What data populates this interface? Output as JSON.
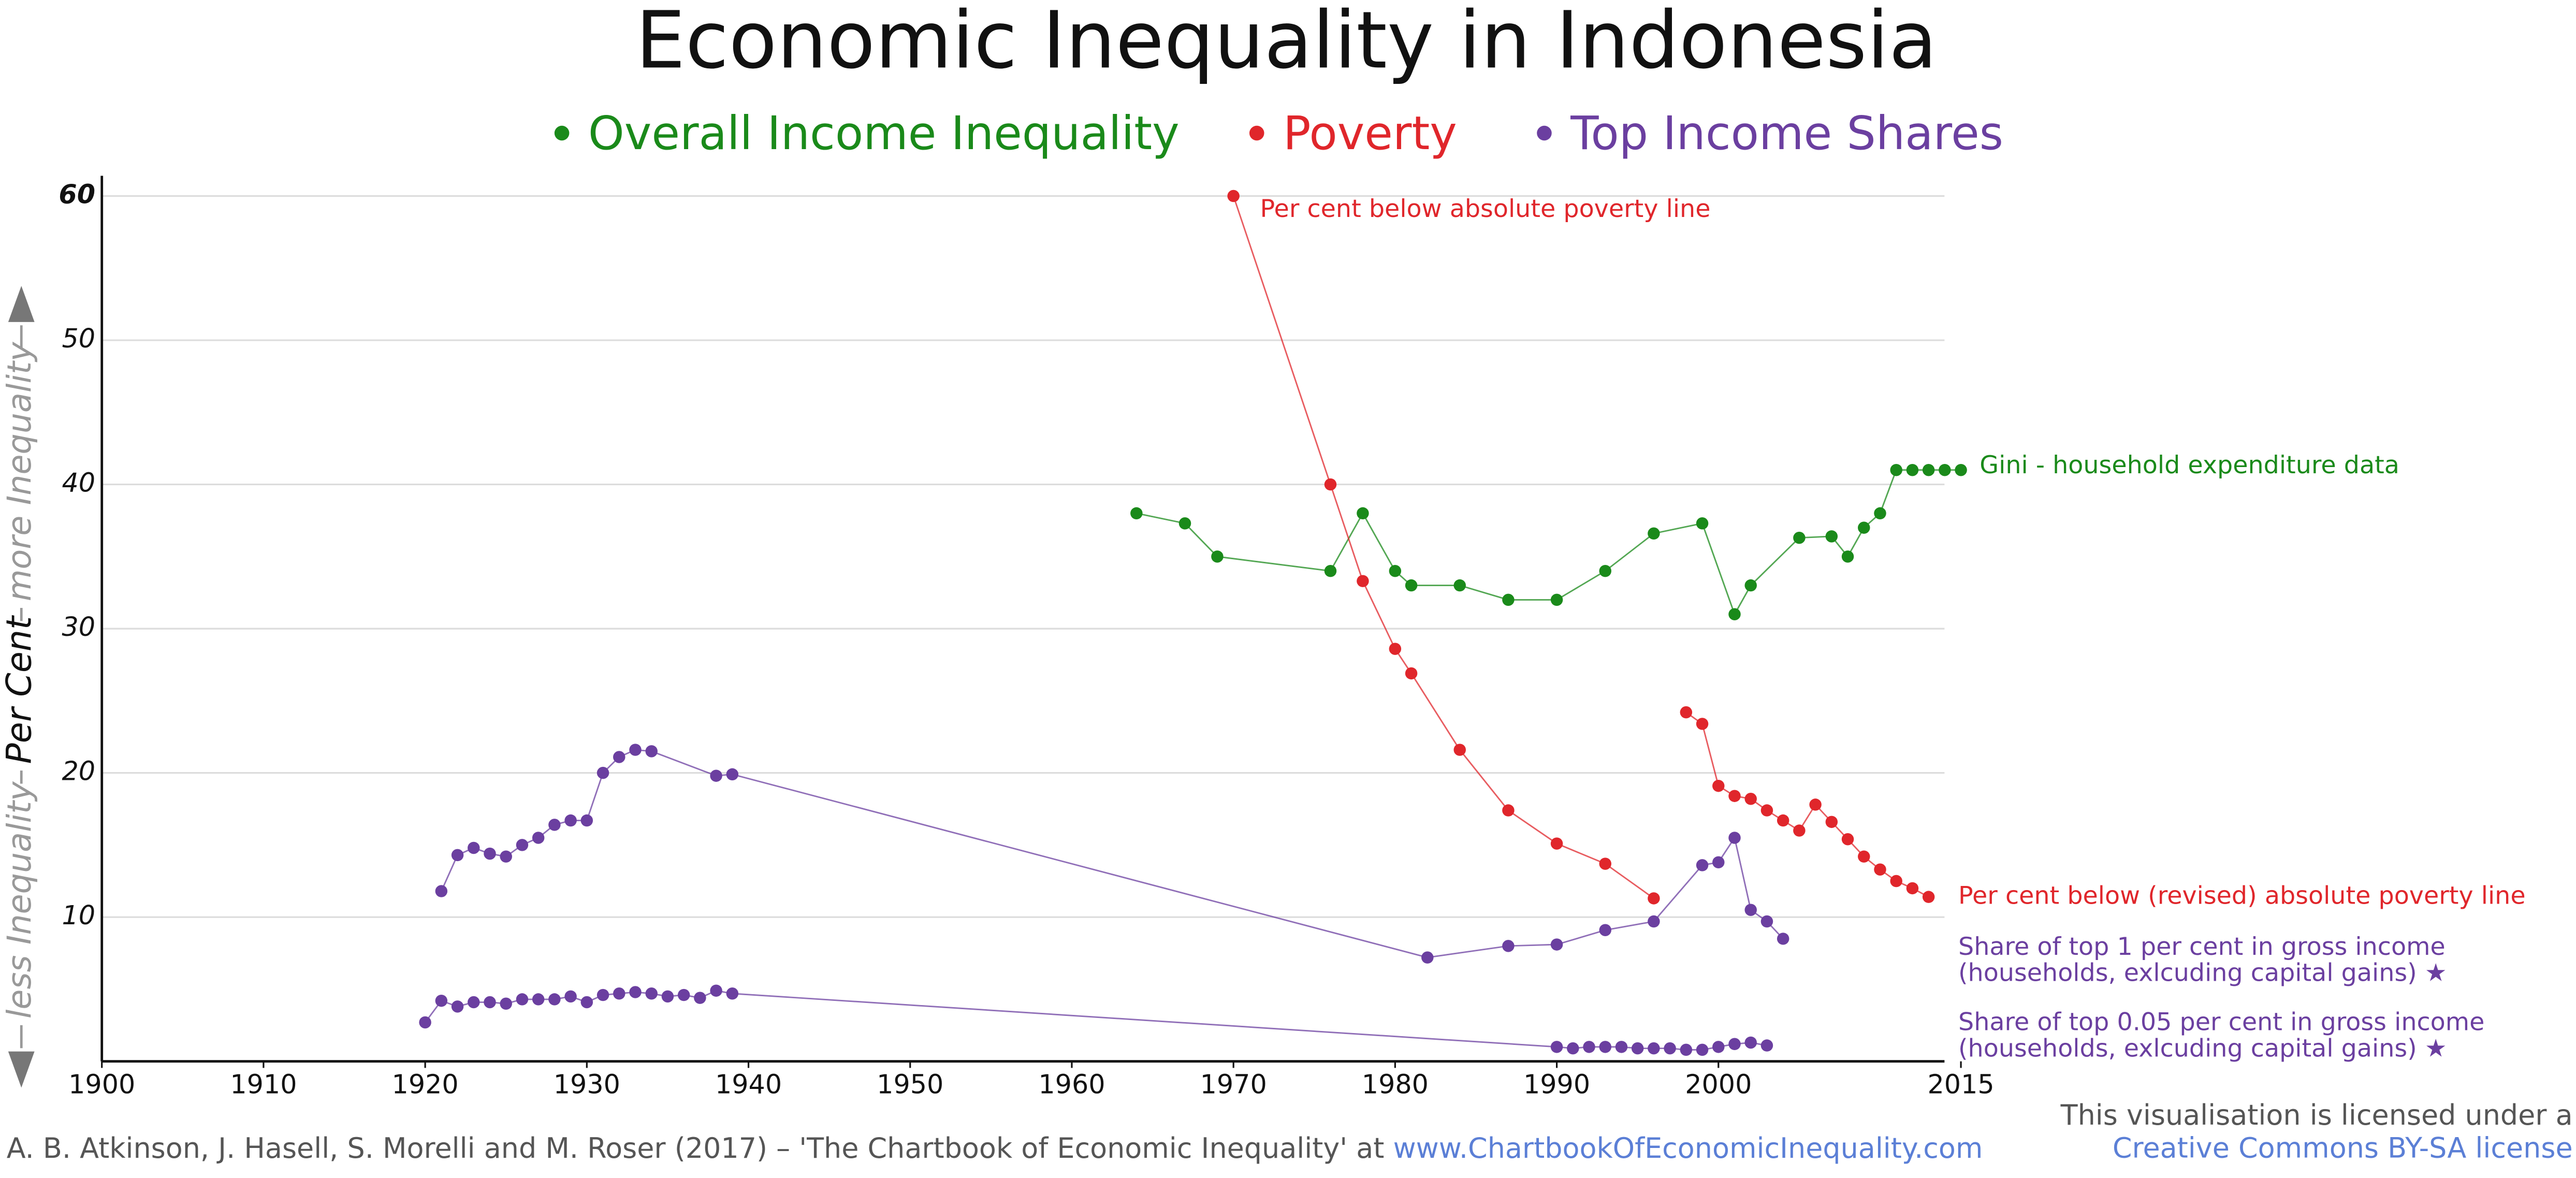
{
  "chart_data": {
    "type": "line",
    "title": "Economic Inequality in Indonesia",
    "legend": [
      {
        "name": "Overall Income Inequality",
        "color": "#1a8a1a"
      },
      {
        "name": "Poverty",
        "color": "#e0262b"
      },
      {
        "name": "Top Income Shares",
        "color": "#6b3fa0"
      }
    ],
    "y_label": {
      "low": "less Inequality",
      "main": "Per Cent",
      "high": "more Inequality"
    },
    "xlim": [
      1900,
      2015
    ],
    "xticks": [
      1900,
      1910,
      1920,
      1930,
      1940,
      1950,
      1960,
      1970,
      1980,
      1990,
      2000,
      2015
    ],
    "ylim": [
      0,
      61.4
    ],
    "yticks": [
      10,
      20,
      30,
      40,
      50,
      60
    ],
    "grid": true,
    "series": [
      {
        "label": "Gini - household expenditure data",
        "color": "#1a8a1a",
        "x": [
          1964,
          1967,
          1969,
          1976,
          1978,
          1980,
          1981,
          1984,
          1987,
          1990,
          1993,
          1996,
          1999,
          2001,
          2002,
          2005,
          2007,
          2008,
          2009,
          2010,
          2011,
          2012,
          2013,
          2014,
          2015
        ],
        "values": [
          38,
          37.3,
          35,
          34,
          38,
          34,
          33,
          33,
          32,
          32,
          34,
          36.6,
          37.3,
          31,
          33,
          36.3,
          36.4,
          35,
          37,
          38,
          41,
          41,
          41,
          41,
          41
        ]
      },
      {
        "label": "Per cent below absolute poverty line",
        "color": "#e0262b",
        "x": [
          1970,
          1976,
          1978,
          1980,
          1981,
          1984,
          1987,
          1990,
          1993,
          1996
        ],
        "values": [
          60,
          40,
          33.3,
          28.6,
          26.9,
          21.6,
          17.4,
          15.1,
          13.7,
          11.3
        ]
      },
      {
        "label": "Per cent below (revised) absolute poverty line",
        "color": "#e0262b",
        "x": [
          1998,
          1999,
          2000,
          2001,
          2002,
          2003,
          2004,
          2005,
          2006,
          2007,
          2008,
          2009,
          2010,
          2011,
          2012,
          2013
        ],
        "values": [
          24.2,
          23.4,
          19.1,
          18.4,
          18.2,
          17.4,
          16.7,
          16.0,
          17.8,
          16.6,
          15.4,
          14.2,
          13.3,
          12.5,
          12.0,
          11.4
        ]
      },
      {
        "label": "Share of top 1 per cent in gross income",
        "label2": "(households, exlcuding capital gains)  ★",
        "color": "#6b3fa0",
        "x": [
          1921,
          1922,
          1923,
          1924,
          1925,
          1926,
          1927,
          1928,
          1929,
          1930,
          1931,
          1932,
          1933,
          1934,
          1938,
          1939,
          1982,
          1987,
          1990,
          1993,
          1996,
          1999,
          2000,
          2001,
          2002,
          2003,
          2004
        ],
        "values": [
          11.8,
          14.3,
          14.8,
          14.4,
          14.2,
          15.0,
          15.5,
          16.4,
          16.7,
          16.7,
          20.0,
          21.1,
          21.6,
          21.5,
          19.8,
          19.9,
          7.2,
          8.0,
          8.1,
          9.1,
          9.7,
          13.6,
          13.8,
          15.5,
          10.5,
          9.7,
          8.5
        ]
      },
      {
        "label": "Share of top 0.05 per cent in gross income",
        "label2": "(households, exlcuding capital gains)  ★",
        "color": "#6b3fa0",
        "x": [
          1920,
          1921,
          1922,
          1923,
          1924,
          1925,
          1926,
          1927,
          1928,
          1929,
          1930,
          1931,
          1932,
          1933,
          1934,
          1935,
          1936,
          1937,
          1938,
          1939,
          1990,
          1991,
          1992,
          1993,
          1994,
          1995,
          1996,
          1997,
          1998,
          1999,
          2000,
          2001,
          2002,
          2003
        ],
        "values": [
          2.7,
          4.2,
          3.8,
          4.1,
          4.1,
          4.0,
          4.3,
          4.3,
          4.3,
          4.5,
          4.1,
          4.6,
          4.7,
          4.8,
          4.7,
          4.5,
          4.6,
          4.4,
          4.9,
          4.7,
          1.0,
          0.9,
          1.0,
          1.0,
          1.0,
          0.9,
          0.9,
          0.9,
          0.8,
          0.8,
          1.0,
          1.2,
          1.3,
          1.1
        ]
      }
    ],
    "footer": {
      "citation": "A. B. Atkinson, J. Hasell, S. Morelli and M. Roser (2017) – 'The Chartbook of Economic Inequality' at ",
      "link": "www.ChartbookOfEconomicInequality.com",
      "license_text": "This visualisation is licensed under a",
      "license_link": "Creative Commons BY-SA license"
    }
  }
}
